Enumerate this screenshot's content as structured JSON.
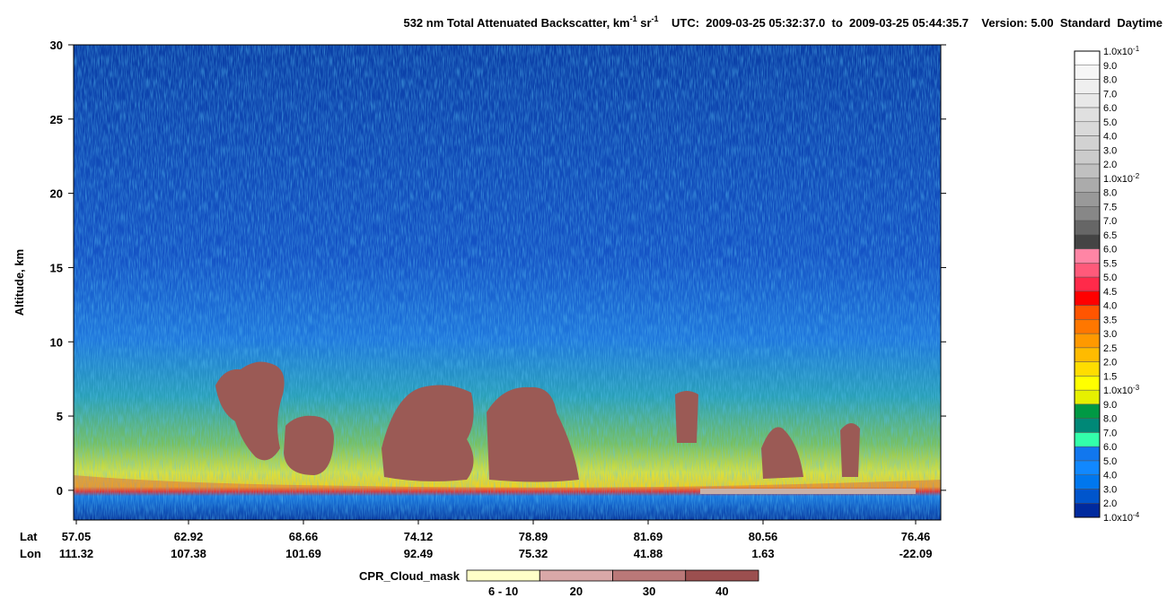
{
  "chart_data": {
    "type": "heatmap",
    "title_parts": [
      {
        "text": "532 nm Total Attenuated Backscatter, km",
        "sup": false
      },
      {
        "text": "-1",
        "sup": true
      },
      {
        "text": " sr",
        "sup": false
      },
      {
        "text": "-1",
        "sup": true
      },
      {
        "text": "    UTC:  2009-03-25 05:32:37.0  to  2009-03-25 05:44:35.7    Version: 5.00  Standard  Daytime",
        "sup": false
      }
    ],
    "y_label": "Altitude, km",
    "ylim": [
      -2,
      30
    ],
    "yticks": [
      0,
      5,
      10,
      15,
      20,
      25,
      30
    ],
    "x_rows": [
      "Lat",
      "Lon"
    ],
    "lat": [
      "57.05",
      "62.92",
      "68.66",
      "74.12",
      "78.89",
      "81.69",
      "80.56",
      "76.46"
    ],
    "lon": [
      "111.32",
      "107.38",
      "101.69",
      "92.49",
      "75.32",
      "41.88",
      "1.63",
      "-22.09"
    ],
    "colorbar": {
      "labels": [
        {
          "text": "1.0x10",
          "sup": "-1"
        },
        "9.0",
        "8.0",
        "7.0",
        "6.0",
        "5.0",
        "4.0",
        "3.0",
        "2.0",
        {
          "text": "1.0x10",
          "sup": "-2"
        },
        "8.0",
        "7.5",
        "7.0",
        "6.5",
        "6.0",
        "5.5",
        "5.0",
        "4.5",
        "4.0",
        "3.5",
        "3.0",
        "2.5",
        "2.0",
        "1.5",
        {
          "text": "1.0x10",
          "sup": "-3"
        },
        "9.0",
        "8.0",
        "7.0",
        "6.0",
        "5.0",
        "4.0",
        "3.0",
        "2.0",
        {
          "text": "1.0x10",
          "sup": "-4"
        }
      ],
      "colors": [
        "#ffffff",
        "#f6f6f6",
        "#efefef",
        "#e8e8e8",
        "#e0e0e0",
        "#d9d9d9",
        "#d2d2d2",
        "#cbcbcb",
        "#c0c0c0",
        "#ababab",
        "#999999",
        "#878787",
        "#666666",
        "#444444",
        "#ff85a5",
        "#ff5a7a",
        "#ff2a4a",
        "#ff0000",
        "#ff5500",
        "#ff7700",
        "#ff9900",
        "#ffbb00",
        "#ffdd00",
        "#ffff00",
        "#e6f000",
        "#009944",
        "#008877",
        "#33ffaa",
        "#1177ee",
        "#1188ff",
        "#0077ee",
        "#0055cc",
        "#002a9e"
      ]
    },
    "cloud_mask": {
      "title": "CPR_Cloud_mask",
      "labels": [
        "6 - 10",
        "20",
        "30",
        "40"
      ],
      "colors": [
        "#ffffc8",
        "#d9a8a8",
        "#ba7878",
        "#9b4f4f"
      ]
    }
  }
}
